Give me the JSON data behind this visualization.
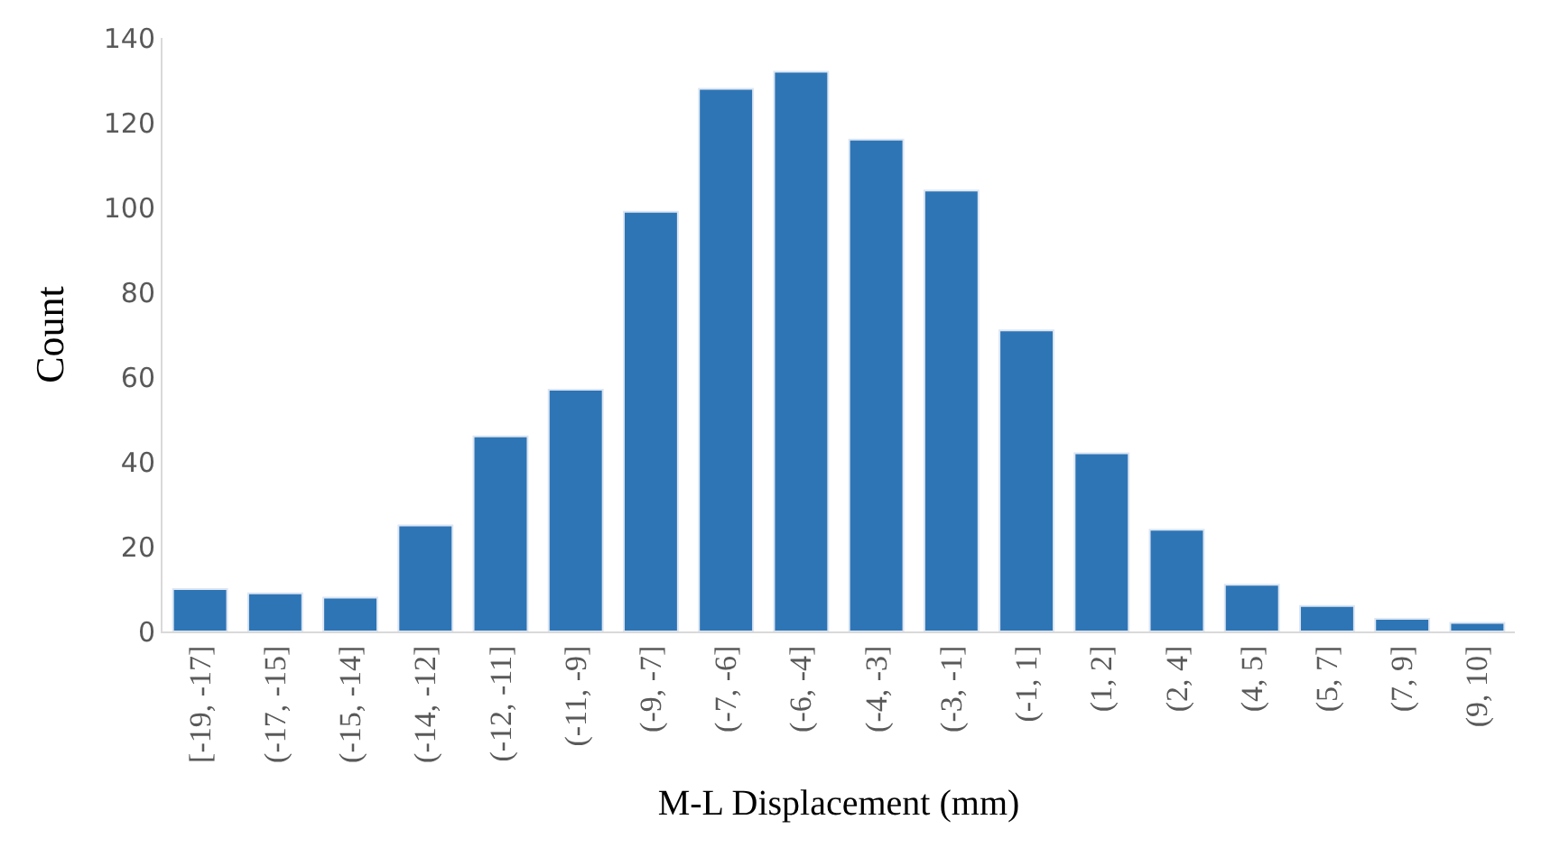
{
  "chart_data": {
    "type": "bar",
    "xlabel": "M-L Displacement (mm)",
    "ylabel": "Count",
    "categories": [
      "[-19, -17]",
      "(-17, -15]",
      "(-15, -14]",
      "(-14, -12]",
      "(-12, -11]",
      "(-11, -9]",
      "(-9, -7]",
      "(-7, -6]",
      "(-6, -4]",
      "(-4, -3]",
      "(-3, -1]",
      "(-1, 1]",
      "(1, 2]",
      "(2, 4]",
      "(4, 5]",
      "(5, 7]",
      "(7, 9]",
      "(9, 10]"
    ],
    "values": [
      10,
      9,
      8,
      25,
      46,
      57,
      99,
      128,
      132,
      116,
      104,
      71,
      42,
      24,
      11,
      6,
      3,
      2
    ],
    "color": "#2e75b6",
    "ylim": [
      0,
      140
    ],
    "yticks": [
      0,
      20,
      40,
      60,
      80,
      100,
      120,
      140
    ]
  }
}
